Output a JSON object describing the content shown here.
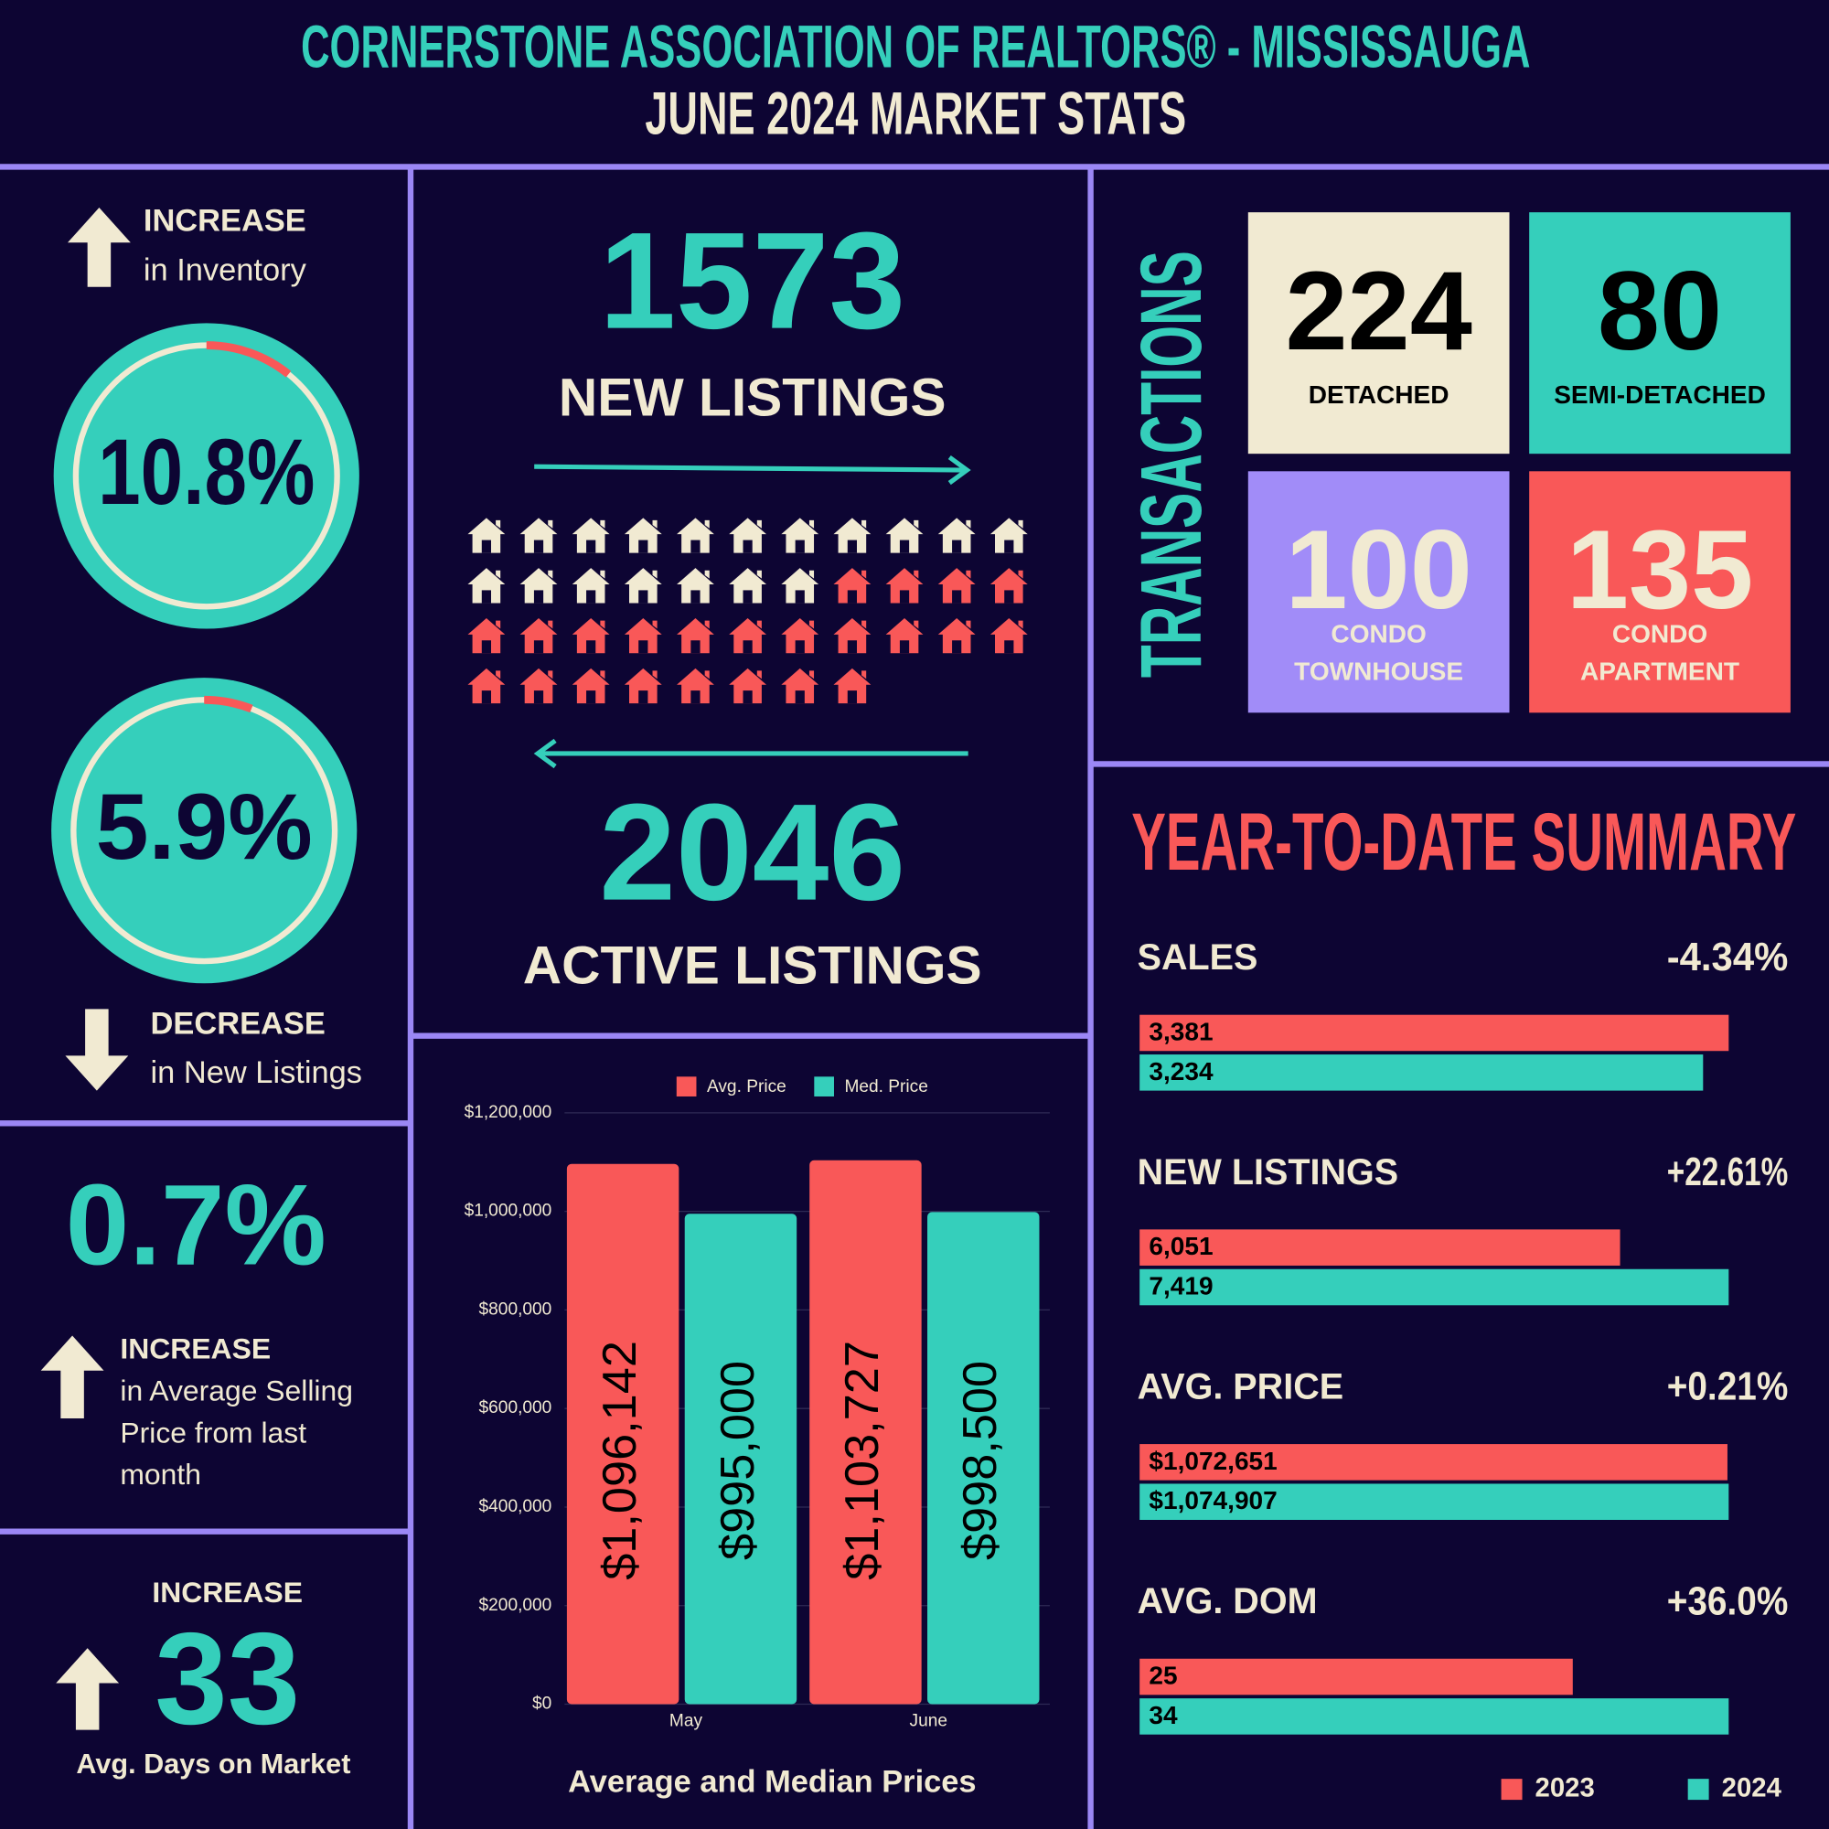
{
  "header": {
    "title": "CORNERSTONE ASSOCIATION OF REALTORS® - MISSISSAUGA",
    "subtitle": "JUNE 2024 MARKET STATS"
  },
  "inventory": {
    "direction": "INCREASE",
    "text": "in Inventory",
    "value": 10.8,
    "label": "10.8%"
  },
  "new_listings_change": {
    "direction": "DECREASE",
    "text": "in New Listings",
    "value": 5.9,
    "label": "5.9%"
  },
  "avg_price_change": {
    "label": "0.7%",
    "direction": "INCREASE",
    "text": [
      "in Average Selling",
      "Price from last",
      "month"
    ]
  },
  "days_on_market": {
    "direction": "INCREASE",
    "value": 33,
    "text": "Avg. Days on Market"
  },
  "listings": {
    "new": {
      "value": 1573,
      "label": "NEW LISTINGS"
    },
    "active": {
      "value": 2046,
      "label": "ACTIVE LISTINGS"
    }
  },
  "transactions": {
    "title": "TRANSACTIONS",
    "tiles": [
      {
        "value": 224,
        "label": [
          "DETACHED"
        ],
        "color": "#f1ead2",
        "text_color": "#000000"
      },
      {
        "value": 80,
        "label": [
          "SEMI-DETACHED"
        ],
        "color": "#35cfbb",
        "text_color": "#000000"
      },
      {
        "value": 100,
        "label": [
          "CONDO",
          "TOWNHOUSE"
        ],
        "color": "#a18cf8",
        "text_color": "#f1ead2"
      },
      {
        "value": 135,
        "label": [
          "CONDO",
          "APARTMENT"
        ],
        "color": "#f95858",
        "text_color": "#f1ead2"
      }
    ]
  },
  "chart_data": [
    {
      "type": "bar",
      "title": "Average and Median Prices",
      "categories": [
        "May",
        "June"
      ],
      "series": [
        {
          "name": "Avg. Price",
          "color": "#f95858",
          "values": [
            1096142,
            1103727
          ],
          "value_labels": [
            "$1,096,142",
            "$1,103,727"
          ]
        },
        {
          "name": "Med. Price",
          "color": "#35cfbb",
          "values": [
            995000,
            998500
          ],
          "value_labels": [
            "$995,000",
            "$998,500"
          ]
        }
      ],
      "ylim": [
        0,
        1200000
      ],
      "yticks": [
        {
          "value": 0,
          "label": "$0"
        },
        {
          "value": 200000,
          "label": "$200,000"
        },
        {
          "value": 400000,
          "label": "$400,000"
        },
        {
          "value": 600000,
          "label": "$600,000"
        },
        {
          "value": 800000,
          "label": "$800,000"
        },
        {
          "value": 1000000,
          "label": "$1,000,000"
        },
        {
          "value": 1200000,
          "label": "$1,200,000"
        }
      ],
      "grid": true,
      "legend": "top"
    },
    {
      "type": "hbar-groups",
      "title": "YEAR-TO-DATE SUMMARY",
      "categories": [
        "SALES",
        "NEW LISTINGS",
        "AVG. PRICE",
        "AVG. DOM"
      ],
      "changes": [
        "-4.34%",
        "+22.61%",
        "+0.21%",
        "+36.0%"
      ],
      "series": [
        {
          "name": "2023",
          "color": "#f95858",
          "values": [
            3381,
            6051,
            1072651,
            25
          ],
          "value_labels": [
            "3,381",
            "6,051",
            "$1,072,651",
            "25"
          ]
        },
        {
          "name": "2024",
          "color": "#35cfbb",
          "values": [
            3234,
            7419,
            1074907,
            34
          ],
          "value_labels": [
            "3,234",
            "7,419",
            "$1,074,907",
            "34"
          ]
        }
      ],
      "legend": "bottom right"
    }
  ]
}
